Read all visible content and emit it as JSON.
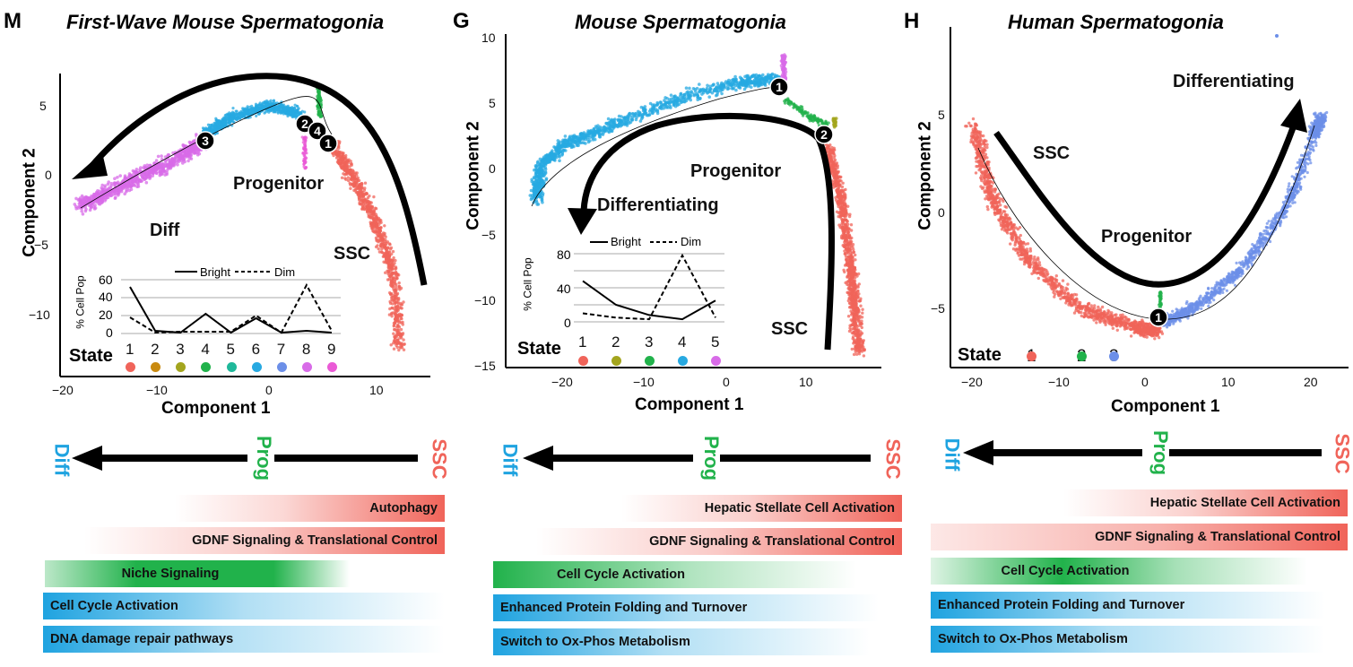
{
  "panels": [
    {
      "letter": "M",
      "title": "First-Wave Mouse Spermatogonia",
      "xlabel": "Component 1",
      "ylabel": "Component 2",
      "xticks": [
        "−20",
        "−10",
        "0",
        "10"
      ],
      "yticks": [
        "5",
        "0",
        "−5",
        "−10"
      ],
      "annotations": [
        "Progenitor",
        "Diff",
        "SSC"
      ],
      "inset": {
        "legend_bright": "Bright",
        "legend_dim": "Dim",
        "ylabel": "% Cell Pop",
        "yticks": [
          "60",
          "40",
          "20",
          "0"
        ],
        "state_label": "State",
        "states": [
          "1",
          "2",
          "3",
          "4",
          "5",
          "6",
          "7",
          "8",
          "9"
        ],
        "state_colors": [
          "#f0645a",
          "#c98a10",
          "#a3a51e",
          "#21b24b",
          "#1fb89a",
          "#27a9e1",
          "#6c8fe8",
          "#d86be8",
          "#ea5ad6"
        ],
        "bright": [
          52,
          3,
          1,
          22,
          1,
          17,
          1,
          3,
          1
        ],
        "dim": [
          18,
          1,
          2,
          2,
          2,
          20,
          1,
          54,
          3
        ]
      },
      "nodes": [
        "3",
        "2",
        "4",
        "1"
      ],
      "axis_left": "Diff",
      "axis_mid": "Prog",
      "axis_right": "SSC",
      "bars": [
        "Autophagy",
        "GDNF Signaling & Translational Control",
        "Niche Signaling",
        "Cell Cycle Activation",
        "DNA damage repair pathways"
      ]
    },
    {
      "letter": "G",
      "title": "Mouse Spermatogonia",
      "xlabel": "Component 1",
      "ylabel": "Component 2",
      "xticks": [
        "−20",
        "−10",
        "0",
        "10"
      ],
      "yticks": [
        "10",
        "5",
        "0",
        "−5",
        "−10",
        "−15"
      ],
      "annotations": [
        "Progenitor",
        "Differentiating",
        "SSC"
      ],
      "inset": {
        "legend_bright": "Bright",
        "legend_dim": "Dim",
        "ylabel": "% Cell Pop",
        "yticks": [
          "80",
          "40",
          "0"
        ],
        "state_label": "State",
        "states": [
          "1",
          "2",
          "3",
          "4",
          "5"
        ],
        "state_colors": [
          "#f0645a",
          "#a3a51e",
          "#21b24b",
          "#27a9e1",
          "#d86be8"
        ],
        "bright": [
          48,
          20,
          8,
          3,
          25
        ],
        "dim": [
          10,
          5,
          3,
          78,
          5
        ]
      },
      "nodes": [
        "1",
        "2"
      ],
      "axis_left": "Diff",
      "axis_mid": "Prog",
      "axis_right": "SSC",
      "bars": [
        "Hepatic Stellate Cell Activation",
        "GDNF Signaling & Translational Control",
        "Cell Cycle Activation",
        "Enhanced Protein Folding and Turnover",
        "Switch to Ox-Phos Metabolism"
      ]
    },
    {
      "letter": "H",
      "title": "Human Spermatogonia",
      "xlabel": "Component 1",
      "ylabel": "Component 2",
      "xticks": [
        "−20",
        "−10",
        "0",
        "10",
        "20"
      ],
      "yticks": [
        "5",
        "0",
        "−5"
      ],
      "annotations": [
        "SSC",
        "Progenitor",
        "Differentiating"
      ],
      "legend": {
        "label": "State",
        "items": [
          "1",
          "2",
          "3"
        ],
        "colors": [
          "#f0645a",
          "#21b24b",
          "#6c8fe8"
        ]
      },
      "nodes": [
        "1"
      ],
      "axis_left": "Diff",
      "axis_mid": "Prog",
      "axis_right": "SSC",
      "bars": [
        "Hepatic Stellate Cell Activation",
        "GDNF Signaling & Translational Control",
        "Cell Cycle Activation",
        "Enhanced Protein Folding and Turnover",
        "Switch to Ox-Phos Metabolism"
      ]
    }
  ],
  "colors": {
    "red": "#f0645a",
    "green": "#21b24b",
    "blue": "#1fa3e0",
    "purple": "#d86be8",
    "diff_text": "#1fa3e0",
    "prog_text": "#21b24b",
    "ssc_text": "#f0645a"
  }
}
